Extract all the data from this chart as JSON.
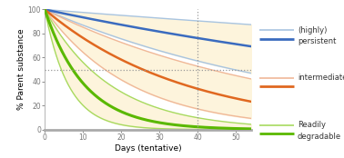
{
  "xlabel": "Days (tentative)",
  "ylabel": "% Parent substance",
  "xlim": [
    0,
    54
  ],
  "ylim": [
    0,
    100
  ],
  "xticks": [
    0,
    10,
    20,
    30,
    40,
    50
  ],
  "yticks": [
    0,
    20,
    40,
    60,
    80,
    100
  ],
  "hline_y": 50,
  "vline_x": 40,
  "background_color": "#ffffff",
  "fill_color": "#fdf4dc",
  "persistent_color": "#3a6bbf",
  "persistent_light_color": "#a8c4e0",
  "intermediate_color": "#e06820",
  "intermediate_light_color": "#f0b898",
  "degradable_color": "#5ab800",
  "degradable_light_color": "#a8da60",
  "persistent_k_main": 0.0068,
  "persistent_k_low": 0.0025,
  "persistent_k_high": 0.014,
  "intermediate_k_main": 0.027,
  "intermediate_k_low": 0.016,
  "intermediate_k_high": 0.044,
  "degradable_k_main": 0.095,
  "degradable_k_low": 0.058,
  "degradable_k_high": 0.16,
  "legend_persistent_label1": "(highly)",
  "legend_persistent_label2": "persistent",
  "legend_intermediate_label": "intermediate",
  "legend_degradable_label1": "Readily",
  "legend_degradable_label2": "degradable"
}
